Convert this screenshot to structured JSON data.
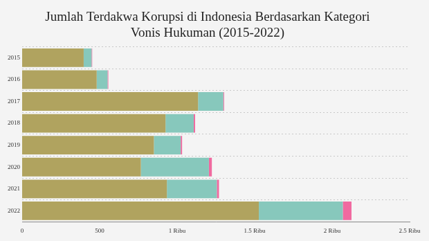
{
  "chart_data": {
    "type": "bar",
    "orientation": "horizontal",
    "stacked": true,
    "grid": true,
    "title": [
      "Jumlah Terdakwa Korupsi di Indonesia Berdasarkan Kategori",
      "Vonis Hukuman (2015-2022)"
    ],
    "categories": [
      "2015",
      "2016",
      "2017",
      "2018",
      "2019",
      "2020",
      "2021",
      "2022"
    ],
    "series": [
      {
        "color": "#b0a35f",
        "values": [
          397,
          481,
          1135,
          925,
          850,
          766,
          934,
          1527
        ]
      },
      {
        "color": "#87c8bc",
        "values": [
          51,
          70,
          163,
          182,
          173,
          439,
          322,
          542
        ]
      },
      {
        "color": "#f06aa0",
        "values": [
          4,
          5,
          5,
          9,
          9,
          19,
          14,
          56
        ]
      }
    ],
    "xlim": [
      0,
      2500
    ],
    "xticks": [
      0,
      500,
      {
        "value": 1000,
        "label": "1 Ribu"
      },
      {
        "value": 1500,
        "label": "1.5 Ribu"
      },
      {
        "value": 2000,
        "label": "2 Ribu"
      },
      {
        "value": 2500,
        "label": "2.5 Ribu"
      }
    ]
  }
}
